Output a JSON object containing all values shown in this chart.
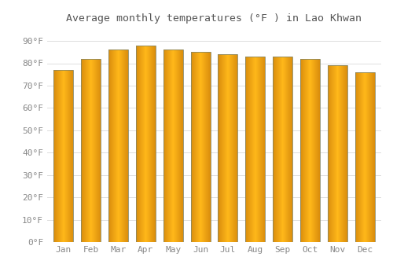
{
  "months": [
    "Jan",
    "Feb",
    "Mar",
    "Apr",
    "May",
    "Jun",
    "Jul",
    "Aug",
    "Sep",
    "Oct",
    "Nov",
    "Dec"
  ],
  "values": [
    77,
    82,
    86,
    88,
    86,
    85,
    84,
    83,
    83,
    82,
    79,
    76
  ],
  "bar_color_light": "#FFD966",
  "bar_color_main": "#FFA500",
  "bar_color_dark": "#CC8800",
  "title": "Average monthly temperatures (°F ) in Lao Khwan",
  "ylabel_ticks": [
    "0°F",
    "10°F",
    "20°F",
    "30°F",
    "40°F",
    "50°F",
    "60°F",
    "70°F",
    "80°F",
    "90°F"
  ],
  "ytick_values": [
    0,
    10,
    20,
    30,
    40,
    50,
    60,
    70,
    80,
    90
  ],
  "ylim": [
    0,
    96
  ],
  "background_color": "#FFFFFF",
  "grid_color": "#DDDDDD",
  "title_fontsize": 9.5,
  "tick_fontsize": 8,
  "tick_color": "#888888"
}
